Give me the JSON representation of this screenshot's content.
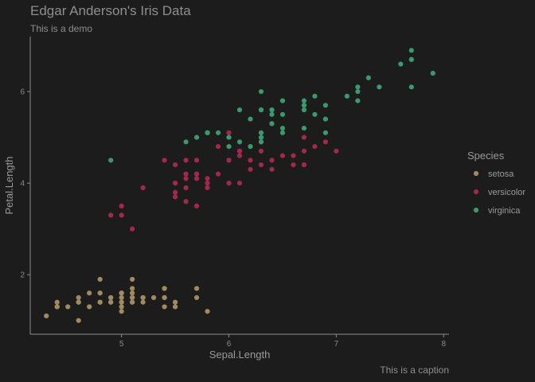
{
  "chart_data": {
    "type": "scatter",
    "title": "Edgar Anderson's Iris Data",
    "subtitle": "This is a demo",
    "caption": "This is a caption",
    "xlabel": "Sepal.Length",
    "ylabel": "Petal.Length",
    "xlim": [
      4.15,
      8.05
    ],
    "ylim": [
      0.7,
      7.2
    ],
    "xticks": [
      5,
      6,
      7,
      8
    ],
    "yticks": [
      2,
      4,
      6
    ],
    "grid": false,
    "legend": {
      "title": "Species",
      "position": "right"
    },
    "series": [
      {
        "name": "setosa",
        "color": "#a08a5f",
        "points": [
          [
            5.1,
            1.4
          ],
          [
            4.9,
            1.4
          ],
          [
            4.7,
            1.3
          ],
          [
            4.6,
            1.5
          ],
          [
            5.0,
            1.4
          ],
          [
            5.4,
            1.7
          ],
          [
            4.6,
            1.4
          ],
          [
            5.0,
            1.5
          ],
          [
            4.4,
            1.4
          ],
          [
            4.9,
            1.5
          ],
          [
            5.4,
            1.5
          ],
          [
            4.8,
            1.6
          ],
          [
            4.8,
            1.4
          ],
          [
            4.3,
            1.1
          ],
          [
            5.8,
            1.2
          ],
          [
            5.7,
            1.5
          ],
          [
            5.4,
            1.3
          ],
          [
            5.1,
            1.4
          ],
          [
            5.7,
            1.7
          ],
          [
            5.1,
            1.5
          ],
          [
            5.4,
            1.7
          ],
          [
            5.1,
            1.5
          ],
          [
            4.6,
            1.0
          ],
          [
            5.1,
            1.7
          ],
          [
            4.8,
            1.9
          ],
          [
            5.0,
            1.6
          ],
          [
            5.0,
            1.6
          ],
          [
            5.2,
            1.5
          ],
          [
            5.2,
            1.4
          ],
          [
            4.7,
            1.6
          ],
          [
            4.8,
            1.6
          ],
          [
            5.4,
            1.5
          ],
          [
            5.2,
            1.5
          ],
          [
            5.5,
            1.4
          ],
          [
            4.9,
            1.5
          ],
          [
            5.0,
            1.2
          ],
          [
            5.5,
            1.3
          ],
          [
            4.9,
            1.4
          ],
          [
            4.4,
            1.3
          ],
          [
            5.1,
            1.5
          ],
          [
            5.0,
            1.3
          ],
          [
            4.5,
            1.3
          ],
          [
            4.4,
            1.3
          ],
          [
            5.0,
            1.6
          ],
          [
            5.1,
            1.9
          ],
          [
            4.8,
            1.4
          ],
          [
            5.1,
            1.6
          ],
          [
            4.6,
            1.4
          ],
          [
            5.3,
            1.5
          ],
          [
            5.0,
            1.4
          ]
        ]
      },
      {
        "name": "versicolor",
        "color": "#a2284e",
        "points": [
          [
            7.0,
            4.7
          ],
          [
            6.4,
            4.5
          ],
          [
            6.9,
            4.9
          ],
          [
            5.5,
            4.0
          ],
          [
            6.5,
            4.6
          ],
          [
            5.7,
            4.5
          ],
          [
            6.3,
            4.7
          ],
          [
            4.9,
            3.3
          ],
          [
            6.6,
            4.6
          ],
          [
            5.2,
            3.9
          ],
          [
            5.0,
            3.5
          ],
          [
            5.9,
            4.2
          ],
          [
            6.0,
            4.0
          ],
          [
            6.1,
            4.7
          ],
          [
            5.6,
            3.6
          ],
          [
            6.7,
            4.4
          ],
          [
            5.6,
            4.5
          ],
          [
            5.8,
            4.1
          ],
          [
            6.2,
            4.5
          ],
          [
            5.6,
            3.9
          ],
          [
            5.9,
            4.8
          ],
          [
            6.1,
            4.0
          ],
          [
            6.3,
            4.9
          ],
          [
            6.1,
            4.7
          ],
          [
            6.4,
            4.3
          ],
          [
            6.6,
            4.4
          ],
          [
            6.8,
            4.8
          ],
          [
            6.7,
            5.0
          ],
          [
            6.0,
            4.5
          ],
          [
            5.7,
            3.5
          ],
          [
            5.5,
            3.8
          ],
          [
            5.5,
            3.7
          ],
          [
            5.8,
            3.9
          ],
          [
            6.0,
            5.1
          ],
          [
            5.4,
            4.5
          ],
          [
            6.0,
            4.5
          ],
          [
            6.7,
            4.7
          ],
          [
            6.3,
            4.4
          ],
          [
            5.6,
            4.1
          ],
          [
            5.5,
            4.0
          ],
          [
            5.5,
            4.4
          ],
          [
            6.1,
            4.6
          ],
          [
            5.8,
            4.0
          ],
          [
            5.0,
            3.3
          ],
          [
            5.6,
            4.2
          ],
          [
            5.7,
            4.2
          ],
          [
            5.7,
            4.2
          ],
          [
            6.2,
            4.3
          ],
          [
            5.1,
            3.0
          ],
          [
            5.7,
            4.1
          ]
        ]
      },
      {
        "name": "virginica",
        "color": "#3a9a6e",
        "points": [
          [
            6.3,
            6.0
          ],
          [
            5.8,
            5.1
          ],
          [
            7.1,
            5.9
          ],
          [
            6.3,
            5.6
          ],
          [
            6.5,
            5.8
          ],
          [
            7.6,
            6.6
          ],
          [
            4.9,
            4.5
          ],
          [
            7.3,
            6.3
          ],
          [
            6.7,
            5.8
          ],
          [
            7.2,
            6.1
          ],
          [
            6.5,
            5.1
          ],
          [
            6.4,
            5.3
          ],
          [
            6.8,
            5.5
          ],
          [
            5.7,
            5.0
          ],
          [
            5.8,
            5.1
          ],
          [
            6.4,
            5.3
          ],
          [
            6.5,
            5.5
          ],
          [
            7.7,
            6.7
          ],
          [
            7.7,
            6.9
          ],
          [
            6.0,
            5.0
          ],
          [
            6.9,
            5.7
          ],
          [
            5.6,
            4.9
          ],
          [
            7.7,
            6.7
          ],
          [
            6.3,
            4.9
          ],
          [
            6.7,
            5.7
          ],
          [
            7.2,
            6.0
          ],
          [
            6.2,
            4.8
          ],
          [
            6.1,
            4.9
          ],
          [
            6.4,
            5.6
          ],
          [
            7.2,
            5.8
          ],
          [
            7.4,
            6.1
          ],
          [
            7.9,
            6.4
          ],
          [
            6.4,
            5.6
          ],
          [
            6.3,
            5.1
          ],
          [
            6.1,
            5.6
          ],
          [
            7.7,
            6.1
          ],
          [
            6.3,
            5.6
          ],
          [
            6.4,
            5.5
          ],
          [
            6.0,
            4.8
          ],
          [
            6.9,
            5.4
          ],
          [
            6.7,
            5.6
          ],
          [
            6.9,
            5.1
          ],
          [
            5.8,
            5.1
          ],
          [
            6.8,
            5.9
          ],
          [
            6.7,
            5.7
          ],
          [
            6.7,
            5.2
          ],
          [
            6.3,
            5.0
          ],
          [
            6.5,
            5.2
          ],
          [
            6.2,
            5.4
          ],
          [
            5.9,
            5.1
          ]
        ]
      }
    ]
  }
}
